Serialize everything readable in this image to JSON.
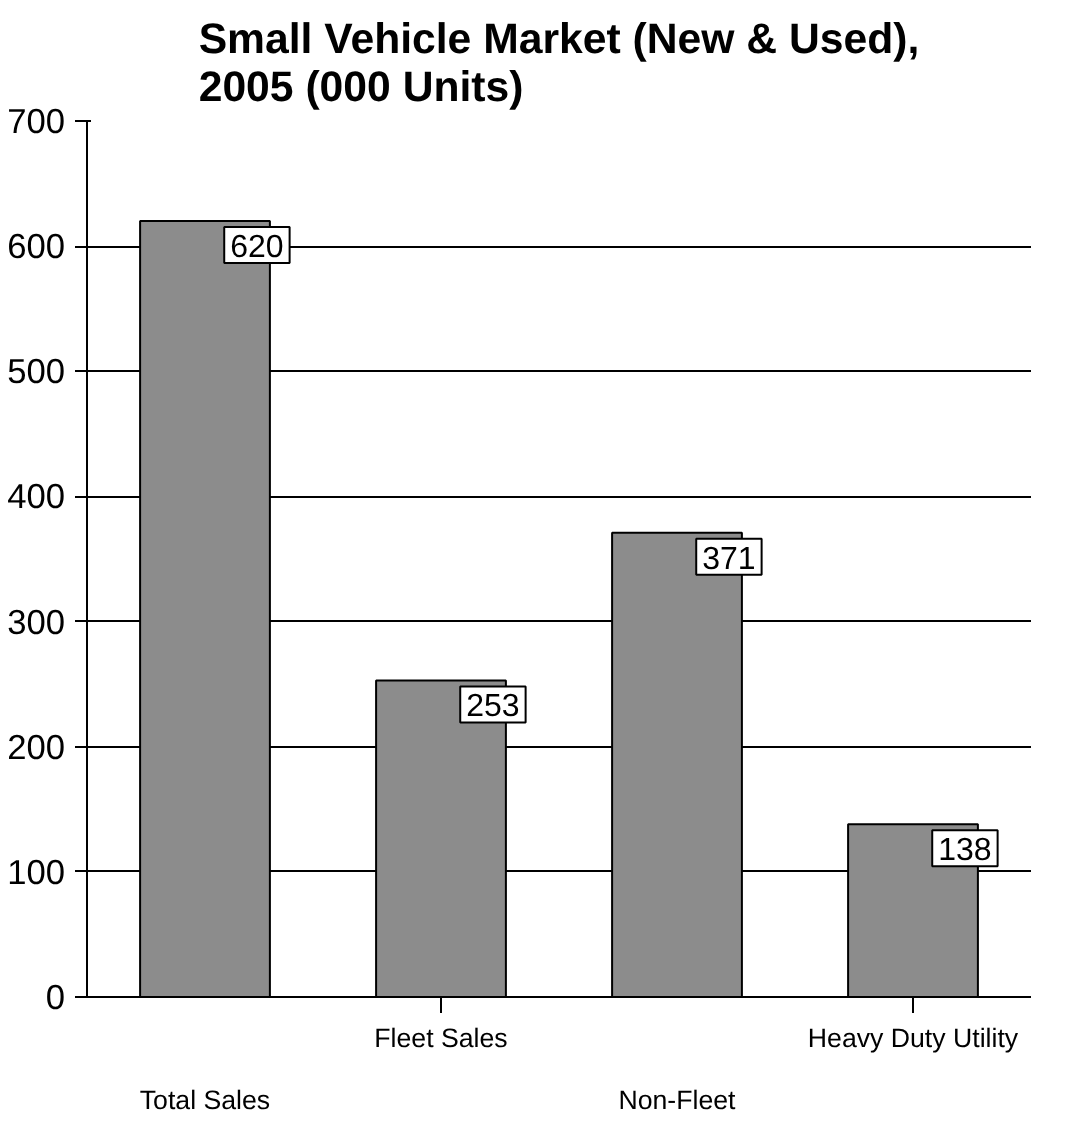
{
  "chart_data": {
    "type": "bar",
    "title": "Small Vehicle Market (New & Used),\n2005 (000 Units)",
    "categories": [
      "Total Sales",
      "Fleet Sales",
      "Non-Fleet",
      "Heavy Duty Utility"
    ],
    "values": [
      620,
      253,
      371,
      138
    ],
    "color": "#8c8c8c",
    "ylim": [
      0,
      700
    ],
    "yticks": [
      0,
      100,
      200,
      300,
      400,
      500,
      600,
      700
    ],
    "grid": "y",
    "data_labels": true
  }
}
